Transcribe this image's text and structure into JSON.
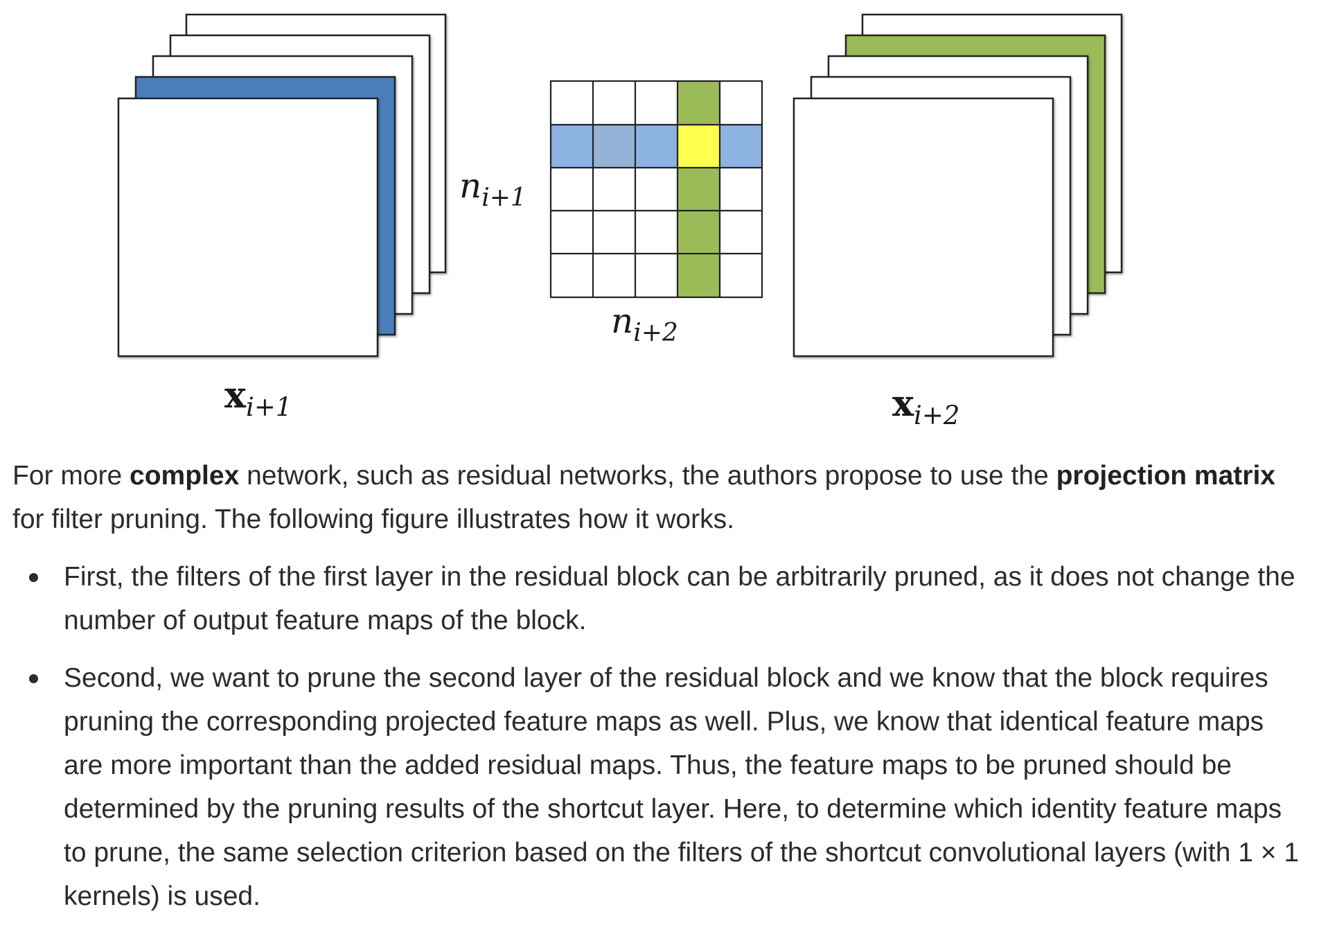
{
  "figure": {
    "left_stack_label": {
      "base": "x",
      "sub": "i+1"
    },
    "right_stack_label": {
      "base": "x",
      "sub": "i+2"
    },
    "matrix_row_label": {
      "base": "n",
      "sub": "i+1"
    },
    "matrix_col_label": {
      "base": "n",
      "sub": "i+2"
    },
    "colors": {
      "blue_layer": "#4a7ebb",
      "green_layer": "#9bbb59",
      "matrix_row": "#8db3e2",
      "matrix_row_alt": "#95b3d7",
      "matrix_col": "#9bbb59",
      "matrix_intersection": "#ffff4d"
    }
  },
  "text": {
    "intro": {
      "t1": "For more ",
      "b1": "complex",
      "t2": " network, such as residual networks, the authors propose to use the ",
      "b2": "projection matrix",
      "t3": " for filter pruning. The following figure illustrates how it works."
    },
    "bullets": [
      "First, the filters of the first layer in the residual block can be arbitrarily pruned, as it does not change the number of output feature maps of the block.",
      "Second, we want to prune the second layer of the residual block and we know that the block requires pruning the corresponding projected feature maps as well. Plus, we know that identical feature maps are more important than the added residual maps. Thus, the feature maps to be pruned should be determined by the pruning results of the shortcut layer. Here, to determine which identity feature maps to prune, the same selection criterion based on the filters of the shortcut convolutional layers (with 1 × 1 kernels) is used."
    ]
  }
}
